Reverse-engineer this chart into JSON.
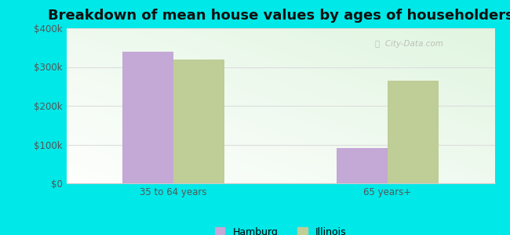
{
  "title": "Breakdown of mean house values by ages of householders",
  "categories": [
    "35 to 64 years",
    "65 years+"
  ],
  "series": {
    "Hamburg": [
      340000,
      90000
    ],
    "Illinois": [
      320000,
      265000
    ]
  },
  "bar_colors": {
    "Hamburg": "#c4a8d6",
    "Illinois": "#bfcd96"
  },
  "ylim": [
    0,
    400000
  ],
  "yticks": [
    0,
    100000,
    200000,
    300000,
    400000
  ],
  "ytick_labels": [
    "$0",
    "$100k",
    "$200k",
    "$300k",
    "$400k"
  ],
  "background_color": "#00e8e8",
  "title_fontsize": 13,
  "legend_labels": [
    "Hamburg",
    "Illinois"
  ],
  "bar_width": 0.38,
  "group_positions": [
    1.0,
    2.6
  ]
}
